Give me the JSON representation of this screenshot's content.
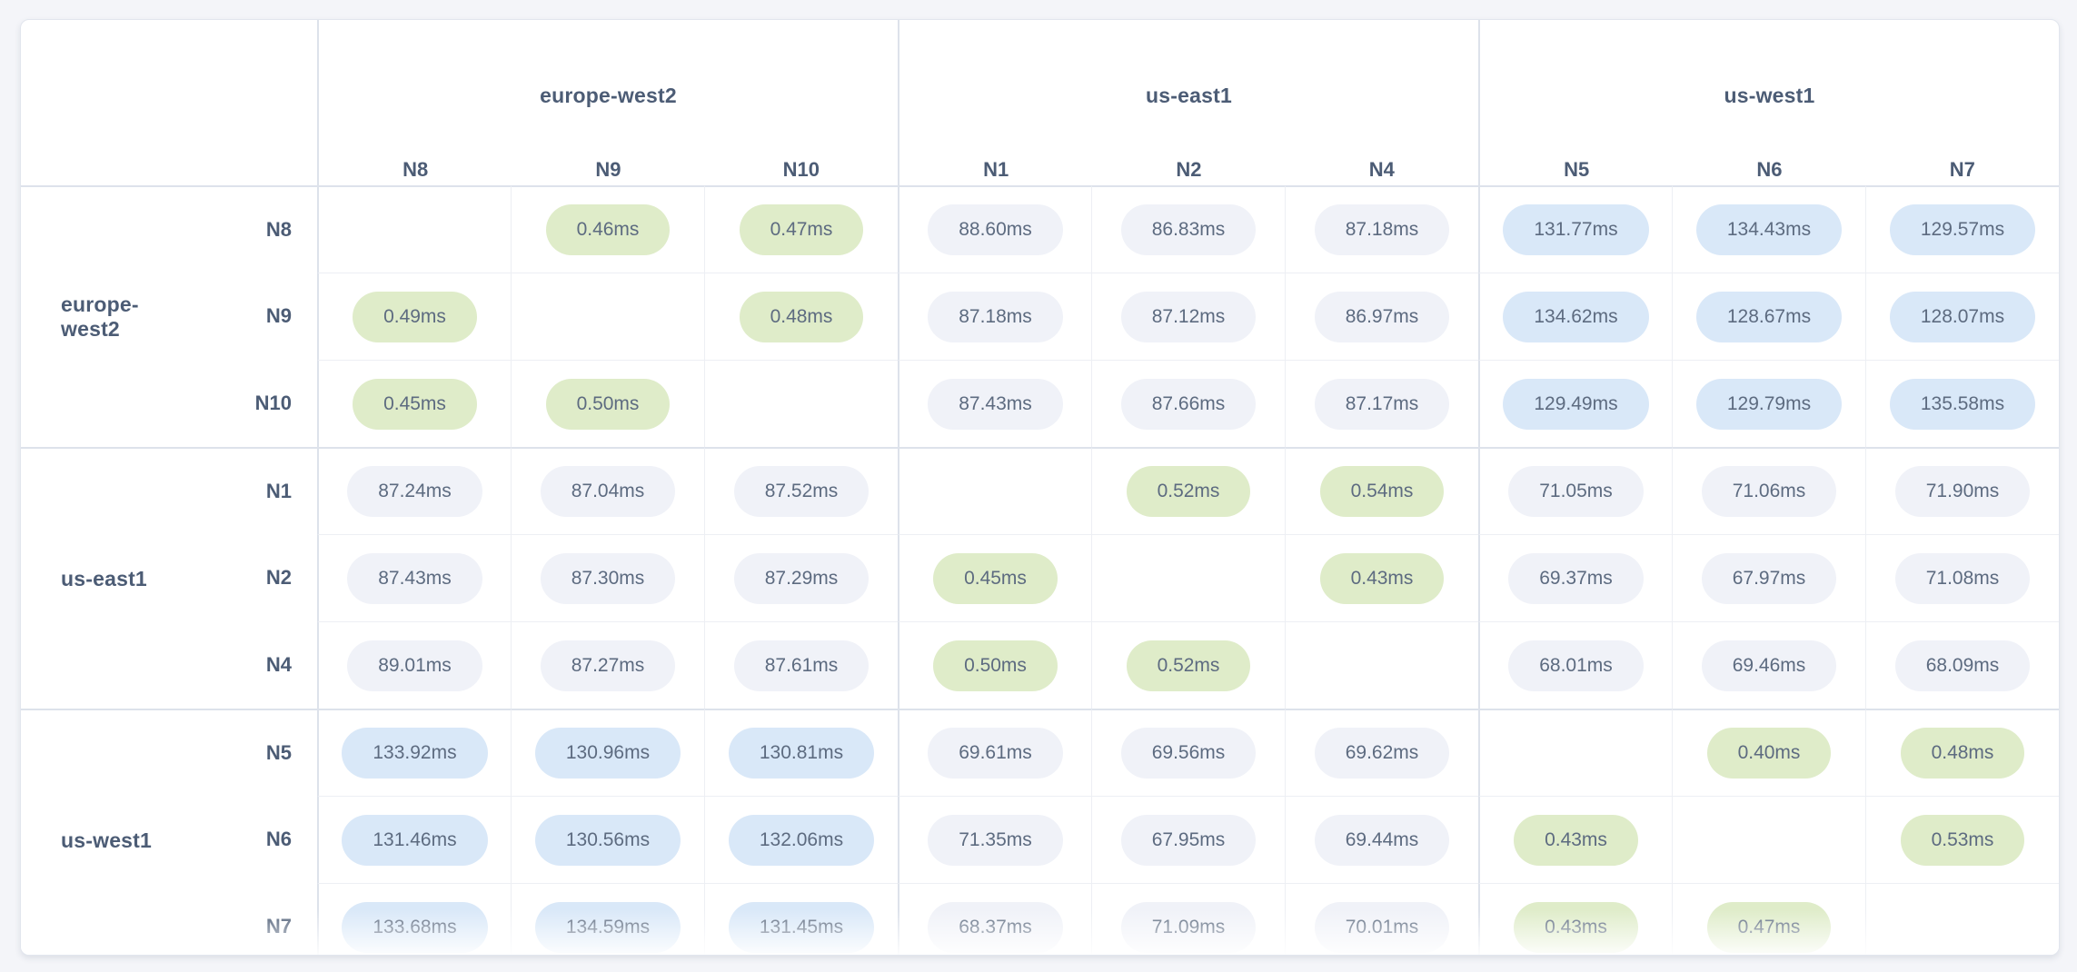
{
  "colors": {
    "green": "#dfecc9",
    "blue": "#d9e8f8",
    "gray": "#f0f2f8",
    "bg": "#f4f5f9",
    "label": "#4c5c75",
    "pill-text": "#5d6b80"
  },
  "table": {
    "unit": "ms",
    "column_groups": [
      {
        "region": "europe-west2",
        "nodes": [
          "N8",
          "N9",
          "N10"
        ]
      },
      {
        "region": "us-east1",
        "nodes": [
          "N1",
          "N2",
          "N4"
        ]
      },
      {
        "region": "us-west1",
        "nodes": [
          "N5",
          "N6",
          "N7"
        ]
      }
    ],
    "row_groups": [
      {
        "region": "europe-west2"
      },
      {
        "region": "us-east1"
      },
      {
        "region": "us-west1"
      }
    ],
    "rows": [
      {
        "node": "N8",
        "cells": [
          {
            "v": "",
            "t": "none"
          },
          {
            "v": "0.46ms",
            "t": "green"
          },
          {
            "v": "0.47ms",
            "t": "green"
          },
          {
            "v": "88.60ms",
            "t": "gray"
          },
          {
            "v": "86.83ms",
            "t": "gray"
          },
          {
            "v": "87.18ms",
            "t": "gray"
          },
          {
            "v": "131.77ms",
            "t": "blue"
          },
          {
            "v": "134.43ms",
            "t": "blue"
          },
          {
            "v": "129.57ms",
            "t": "blue"
          }
        ]
      },
      {
        "node": "N9",
        "cells": [
          {
            "v": "0.49ms",
            "t": "green"
          },
          {
            "v": "",
            "t": "none"
          },
          {
            "v": "0.48ms",
            "t": "green"
          },
          {
            "v": "87.18ms",
            "t": "gray"
          },
          {
            "v": "87.12ms",
            "t": "gray"
          },
          {
            "v": "86.97ms",
            "t": "gray"
          },
          {
            "v": "134.62ms",
            "t": "blue"
          },
          {
            "v": "128.67ms",
            "t": "blue"
          },
          {
            "v": "128.07ms",
            "t": "blue"
          }
        ]
      },
      {
        "node": "N10",
        "cells": [
          {
            "v": "0.45ms",
            "t": "green"
          },
          {
            "v": "0.50ms",
            "t": "green"
          },
          {
            "v": "",
            "t": "none"
          },
          {
            "v": "87.43ms",
            "t": "gray"
          },
          {
            "v": "87.66ms",
            "t": "gray"
          },
          {
            "v": "87.17ms",
            "t": "gray"
          },
          {
            "v": "129.49ms",
            "t": "blue"
          },
          {
            "v": "129.79ms",
            "t": "blue"
          },
          {
            "v": "135.58ms",
            "t": "blue"
          }
        ]
      },
      {
        "node": "N1",
        "cells": [
          {
            "v": "87.24ms",
            "t": "gray"
          },
          {
            "v": "87.04ms",
            "t": "gray"
          },
          {
            "v": "87.52ms",
            "t": "gray"
          },
          {
            "v": "",
            "t": "none"
          },
          {
            "v": "0.52ms",
            "t": "green"
          },
          {
            "v": "0.54ms",
            "t": "green"
          },
          {
            "v": "71.05ms",
            "t": "gray"
          },
          {
            "v": "71.06ms",
            "t": "gray"
          },
          {
            "v": "71.90ms",
            "t": "gray"
          }
        ]
      },
      {
        "node": "N2",
        "cells": [
          {
            "v": "87.43ms",
            "t": "gray"
          },
          {
            "v": "87.30ms",
            "t": "gray"
          },
          {
            "v": "87.29ms",
            "t": "gray"
          },
          {
            "v": "0.45ms",
            "t": "green"
          },
          {
            "v": "",
            "t": "none"
          },
          {
            "v": "0.43ms",
            "t": "green"
          },
          {
            "v": "69.37ms",
            "t": "gray"
          },
          {
            "v": "67.97ms",
            "t": "gray"
          },
          {
            "v": "71.08ms",
            "t": "gray"
          }
        ]
      },
      {
        "node": "N4",
        "cells": [
          {
            "v": "89.01ms",
            "t": "gray"
          },
          {
            "v": "87.27ms",
            "t": "gray"
          },
          {
            "v": "87.61ms",
            "t": "gray"
          },
          {
            "v": "0.50ms",
            "t": "green"
          },
          {
            "v": "0.52ms",
            "t": "green"
          },
          {
            "v": "",
            "t": "none"
          },
          {
            "v": "68.01ms",
            "t": "gray"
          },
          {
            "v": "69.46ms",
            "t": "gray"
          },
          {
            "v": "68.09ms",
            "t": "gray"
          }
        ]
      },
      {
        "node": "N5",
        "cells": [
          {
            "v": "133.92ms",
            "t": "blue"
          },
          {
            "v": "130.96ms",
            "t": "blue"
          },
          {
            "v": "130.81ms",
            "t": "blue"
          },
          {
            "v": "69.61ms",
            "t": "gray"
          },
          {
            "v": "69.56ms",
            "t": "gray"
          },
          {
            "v": "69.62ms",
            "t": "gray"
          },
          {
            "v": "",
            "t": "none"
          },
          {
            "v": "0.40ms",
            "t": "green"
          },
          {
            "v": "0.48ms",
            "t": "green"
          }
        ]
      },
      {
        "node": "N6",
        "cells": [
          {
            "v": "131.46ms",
            "t": "blue"
          },
          {
            "v": "130.56ms",
            "t": "blue"
          },
          {
            "v": "132.06ms",
            "t": "blue"
          },
          {
            "v": "71.35ms",
            "t": "gray"
          },
          {
            "v": "67.95ms",
            "t": "gray"
          },
          {
            "v": "69.44ms",
            "t": "gray"
          },
          {
            "v": "0.43ms",
            "t": "green"
          },
          {
            "v": "",
            "t": "none"
          },
          {
            "v": "0.53ms",
            "t": "green"
          }
        ]
      },
      {
        "node": "N7",
        "cells": [
          {
            "v": "133.68ms",
            "t": "blue"
          },
          {
            "v": "134.59ms",
            "t": "blue"
          },
          {
            "v": "131.45ms",
            "t": "blue"
          },
          {
            "v": "68.37ms",
            "t": "gray"
          },
          {
            "v": "71.09ms",
            "t": "gray"
          },
          {
            "v": "70.01ms",
            "t": "gray"
          },
          {
            "v": "0.43ms",
            "t": "green"
          },
          {
            "v": "0.47ms",
            "t": "green"
          },
          {
            "v": "",
            "t": "none"
          }
        ]
      }
    ]
  }
}
